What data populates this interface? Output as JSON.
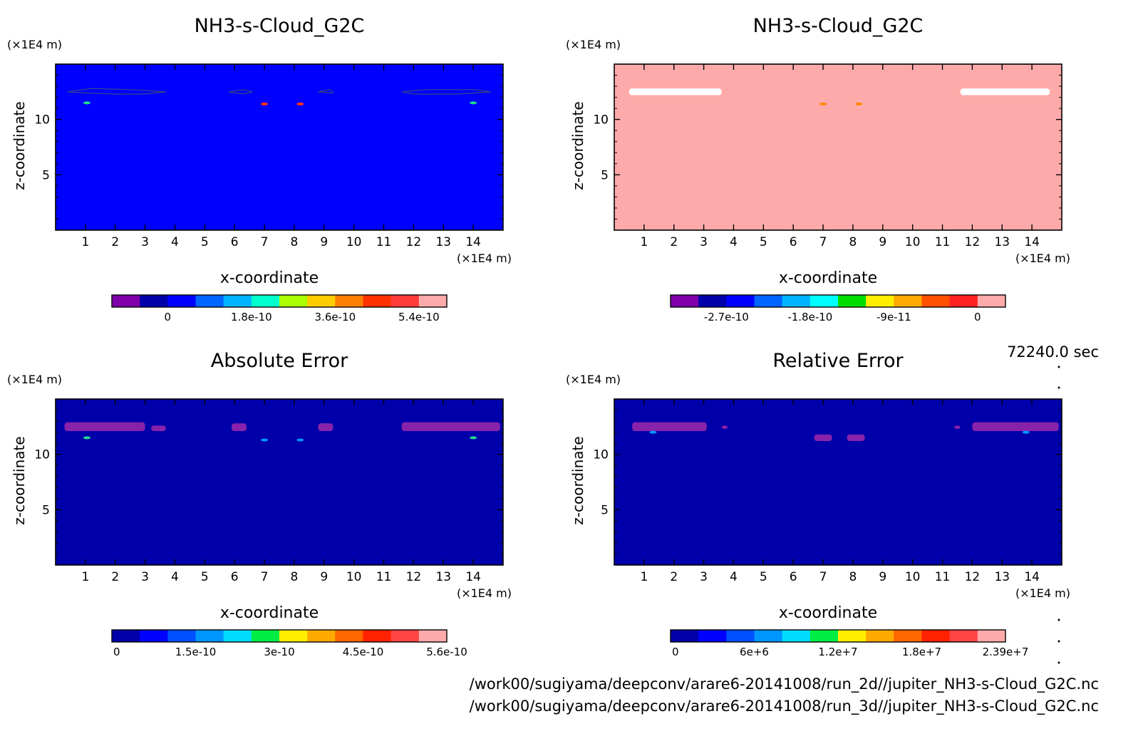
{
  "time_label": "72240.0 sec",
  "footer": {
    "line1": "/work00/sugiyama/deepconv/arare6-20141008/run_2d//jupiter_NH3-s-Cloud_G2C.nc",
    "line2": "/work00/sugiyama/deepconv/arare6-20141008/run_3d//jupiter_NH3-s-Cloud_G2C.nc"
  },
  "chart_data": [
    {
      "type": "heatmap",
      "title": "NH3-s-Cloud_G2C",
      "xlabel": "x-coordinate",
      "ylabel": "z-coordinate",
      "x_unit": "(×1E4 m)",
      "y_unit": "(×1E4 m)",
      "xlim": [
        0,
        15
      ],
      "ylim": [
        0,
        15
      ],
      "xticks": [
        1,
        2,
        3,
        4,
        5,
        6,
        7,
        8,
        9,
        10,
        11,
        12,
        13,
        14
      ],
      "yticks": [
        5,
        10
      ],
      "background_color": "#0000ff",
      "colorbar": {
        "colors": [
          "#7f00aa",
          "#0000aa",
          "#0000ff",
          "#0064ff",
          "#00b4ff",
          "#00ffcc",
          "#aaff00",
          "#ffcc00",
          "#ff8000",
          "#ff3300",
          "#ff3c3c",
          "#ffaaaa"
        ],
        "tick_labels": [
          "0",
          "1.8e-10",
          "3.6e-10",
          "5.4e-10"
        ],
        "tick_index": [
          2,
          5,
          8,
          11
        ]
      }
    },
    {
      "type": "heatmap",
      "title": "NH3-s-Cloud_G2C",
      "xlabel": "x-coordinate",
      "ylabel": "z-coordinate",
      "x_unit": "(×1E4 m)",
      "y_unit": "(×1E4 m)",
      "xlim": [
        0,
        15
      ],
      "ylim": [
        0,
        15
      ],
      "xticks": [
        1,
        2,
        3,
        4,
        5,
        6,
        7,
        8,
        9,
        10,
        11,
        12,
        13,
        14
      ],
      "yticks": [
        5,
        10
      ],
      "background_color": "#ffaaaa",
      "colorbar": {
        "colors": [
          "#7f00aa",
          "#0000aa",
          "#0000ff",
          "#0064ff",
          "#00b4ff",
          "#00ffff",
          "#00dd00",
          "#ffee00",
          "#ffaa00",
          "#ff5000",
          "#ff2222",
          "#ffaaaa"
        ],
        "tick_labels": [
          "-2.7e-10",
          "-1.8e-10",
          "-9e-11",
          "0"
        ],
        "tick_index": [
          2,
          5,
          8,
          11
        ]
      }
    },
    {
      "type": "heatmap",
      "title": "Absolute Error",
      "xlabel": "x-coordinate",
      "ylabel": "z-coordinate",
      "x_unit": "(×1E4 m)",
      "y_unit": "(×1E4 m)",
      "xlim": [
        0,
        15
      ],
      "ylim": [
        0,
        15
      ],
      "xticks": [
        1,
        2,
        3,
        4,
        5,
        6,
        7,
        8,
        9,
        10,
        11,
        12,
        13,
        14
      ],
      "yticks": [
        5,
        10
      ],
      "background_color": "#0000aa",
      "colorbar": {
        "colors": [
          "#0000aa",
          "#0000ff",
          "#0050ff",
          "#0096ff",
          "#00dcff",
          "#00ee44",
          "#ffee00",
          "#ffaa00",
          "#ff6600",
          "#ff2200",
          "#ff4444",
          "#ffaaaa"
        ],
        "tick_labels": [
          "0",
          "1.5e-10",
          "3e-10",
          "4.5e-10",
          "5.6e-10"
        ],
        "tick_index": [
          0,
          3,
          6,
          9,
          12
        ]
      }
    },
    {
      "type": "heatmap",
      "title": "Relative Error",
      "xlabel": "x-coordinate",
      "ylabel": "z-coordinate",
      "x_unit": "(×1E4 m)",
      "y_unit": "(×1E4 m)",
      "xlim": [
        0,
        15
      ],
      "ylim": [
        0,
        15
      ],
      "xticks": [
        1,
        2,
        3,
        4,
        5,
        6,
        7,
        8,
        9,
        10,
        11,
        12,
        13,
        14
      ],
      "yticks": [
        5,
        10
      ],
      "background_color": "#0000aa",
      "colorbar": {
        "colors": [
          "#0000aa",
          "#0000ff",
          "#0050ff",
          "#0096ff",
          "#00dcff",
          "#00ee44",
          "#ffee00",
          "#ffaa00",
          "#ff6600",
          "#ff2200",
          "#ff4444",
          "#ffaaaa"
        ],
        "tick_labels": [
          "0",
          "6e+6",
          "1.2e+7",
          "1.8e+7",
          "2.39e+7"
        ],
        "tick_index": [
          0,
          3,
          6,
          9,
          12
        ]
      }
    }
  ]
}
